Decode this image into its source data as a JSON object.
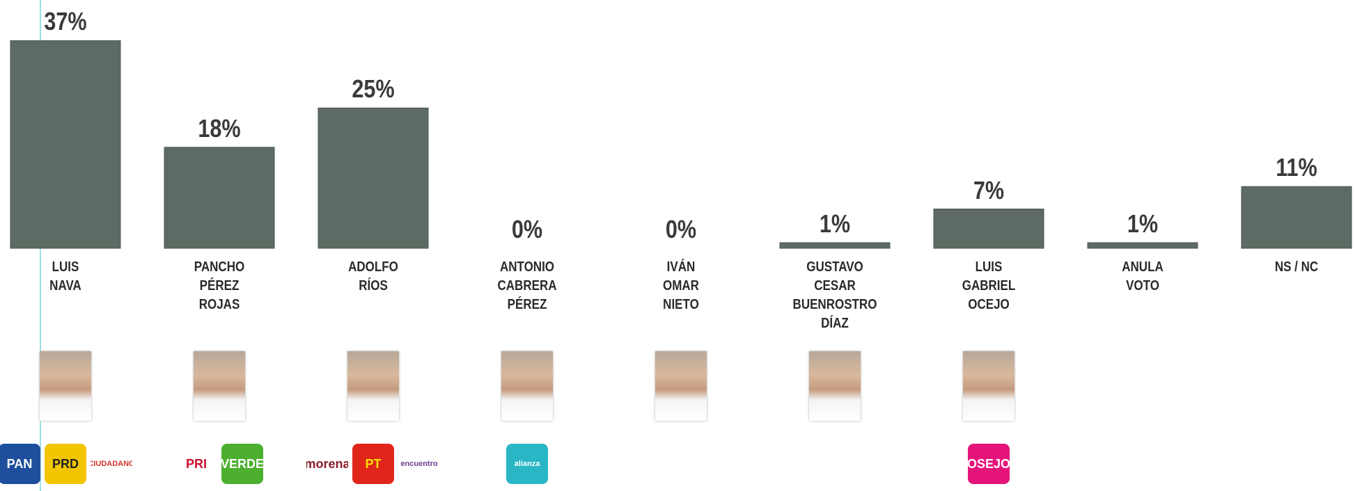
{
  "chart_data": {
    "type": "bar",
    "categories": [
      "LUIS\nNAVA",
      "PANCHO\nPÉREZ\nROJAS",
      "ADOLFO\nRÍOS",
      "ANTONIO\nCABRERA\nPÉREZ",
      "IVÁN\nOMAR\nNIETO",
      "GUSTAVO\nCESAR\nBUENROSTRO\nDÍAZ",
      "LUIS\nGABRIEL\nOCEJO",
      "ANULA\nVOTO",
      "NS / NC"
    ],
    "values": [
      37,
      18,
      25,
      0,
      0,
      1,
      7,
      1,
      11
    ],
    "value_labels": [
      "37%",
      "18%",
      "25%",
      "0%",
      "0%",
      "1%",
      "7%",
      "1%",
      "11%"
    ],
    "color": "#5e6b64",
    "logos": [
      [
        "PAN",
        "PRD",
        "CIUDADANO"
      ],
      [
        "PRI",
        "VERDE"
      ],
      [
        "morena",
        "PT",
        "encuentro"
      ],
      [
        "alianza"
      ],
      [],
      [],
      [
        "OSEJO"
      ],
      [],
      []
    ]
  }
}
